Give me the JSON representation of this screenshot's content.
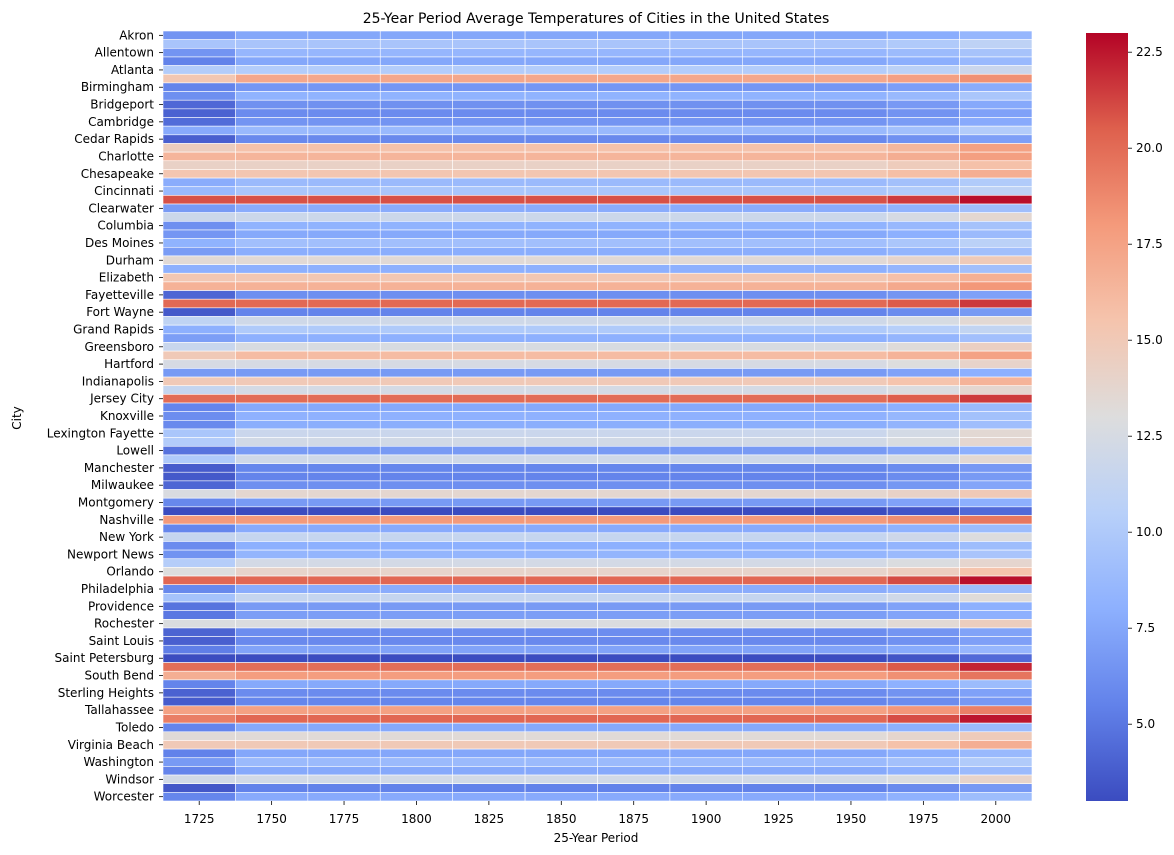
{
  "chart_data": {
    "type": "heatmap",
    "title": "25-Year Period Average Temperatures of Cities in the United States",
    "xlabel": "25-Year Period",
    "ylabel": "City",
    "x_tick_labels": [
      "1725",
      "1750",
      "1775",
      "1800",
      "1825",
      "1850",
      "1875",
      "1900",
      "1925",
      "1950",
      "1975",
      "2000"
    ],
    "y_tick_labels": [
      "Akron",
      "Allentown",
      "Atlanta",
      "Birmingham",
      "Bridgeport",
      "Cambridge",
      "Cedar Rapids",
      "Charlotte",
      "Chesapeake",
      "Cincinnati",
      "Clearwater",
      "Columbia",
      "Des Moines",
      "Durham",
      "Elizabeth",
      "Fayetteville",
      "Fort Wayne",
      "Grand Rapids",
      "Greensboro",
      "Hartford",
      "Indianapolis",
      "Jersey City",
      "Knoxville",
      "Lexington Fayette",
      "Lowell",
      "Manchester",
      "Milwaukee",
      "Montgomery",
      "Nashville",
      "New York",
      "Newport News",
      "Orlando",
      "Philadelphia",
      "Providence",
      "Rochester",
      "Saint Louis",
      "Saint Petersburg",
      "South Bend",
      "Sterling Heights",
      "Tallahassee",
      "Toledo",
      "Virginia Beach",
      "Washington",
      "Windsor",
      "Worcester"
    ],
    "colorbar": {
      "colormap": "coolwarm",
      "vmin": 3.0,
      "vmax": 23.0,
      "tick_labels": [
        "5.0",
        "7.5",
        "10.0",
        "12.5",
        "15.0",
        "17.5",
        "20.0",
        "22.5"
      ]
    },
    "row_base_values": [
      7.5,
      9.6,
      8.5,
      7.5,
      10.2,
      17.2,
      6.6,
      8.2,
      6.3,
      6.0,
      6.5,
      8.7,
      5.9,
      15.6,
      16.4,
      14.2,
      15.3,
      8.8,
      9.7,
      20.9,
      7.8,
      11.8,
      8.2,
      7.6,
      9.2,
      7.9,
      13.4,
      8.0,
      15.2,
      16.6,
      6.2,
      20.1,
      5.6,
      12.0,
      10.0,
      8.0,
      12.6,
      16.0,
      12.5,
      6.8,
      15.0,
      12.4,
      20.0,
      7.6,
      8.1,
      7.9,
      11.7,
      12.2,
      6.8,
      12.0,
      5.7,
      5.6,
      6.2,
      13.7,
      6.8,
      2.9,
      18.0,
      7.7,
      11.4,
      8.0,
      8.4,
      12.3,
      14.0,
      20.2,
      7.8,
      11.4,
      6.8,
      7.0,
      12.8,
      6.1,
      5.9,
      7.3,
      2.9,
      19.9,
      17.8,
      7.6,
      6.0,
      5.7,
      17.6,
      20.2,
      7.6,
      13.3,
      15.0,
      7.5,
      8.8,
      7.6,
      12.2,
      5.5,
      7.7
    ],
    "row_warming": [
      1.0,
      1.3,
      1.0,
      1.2,
      1.5,
      1.2,
      1.2,
      1.5,
      1.3,
      1.2,
      1.2,
      1.5,
      1.2,
      2.0,
      1.3,
      1.5,
      1.5,
      1.3,
      1.2,
      1.8,
      1.3,
      1.8,
      1.2,
      1.2,
      1.5,
      1.3,
      1.5,
      1.2,
      1.5,
      1.5,
      1.0,
      1.5,
      1.2,
      1.5,
      1.2,
      1.2,
      1.8,
      1.5,
      1.5,
      1.2,
      1.5,
      1.3,
      1.5,
      1.2,
      1.2,
      1.2,
      1.8,
      1.5,
      1.2,
      1.5,
      1.0,
      1.2,
      1.2,
      1.3,
      1.2,
      1.5,
      1.5,
      1.2,
      1.5,
      1.0,
      1.2,
      1.5,
      1.5,
      2.5,
      1.2,
      1.8,
      1.2,
      1.0,
      1.8,
      1.2,
      1.2,
      1.2,
      1.5,
      2.2,
      1.8,
      1.3,
      1.2,
      1.0,
      1.5,
      2.3,
      1.2,
      1.5,
      1.8,
      1.2,
      1.3,
      1.2,
      1.8,
      1.2,
      1.3
    ],
    "first_period_offsets": [
      -1,
      0,
      -2,
      -2,
      0,
      -2,
      -1,
      -2,
      -2,
      -2,
      -2,
      -1,
      -2,
      -1,
      0,
      0,
      0,
      -1,
      -1,
      0,
      -1,
      0,
      -2,
      -1,
      -1,
      -1,
      0,
      0,
      0,
      0,
      -2,
      0,
      -2,
      -1,
      -2,
      -1,
      -1,
      -1,
      0,
      0,
      0,
      -1,
      0,
      -2,
      -2,
      -2,
      -2,
      -2,
      -2,
      -2,
      -2,
      -2,
      -2,
      -1,
      -1,
      0,
      0,
      -2,
      0,
      -2,
      -2,
      -2,
      -1,
      0,
      -2,
      -2,
      -2,
      -2,
      0,
      -2,
      -2,
      -2,
      0,
      0,
      -1,
      -2,
      -2,
      -2,
      0,
      -1,
      -2,
      0,
      0,
      -2,
      -2,
      -2,
      0,
      -2,
      -2
    ]
  }
}
